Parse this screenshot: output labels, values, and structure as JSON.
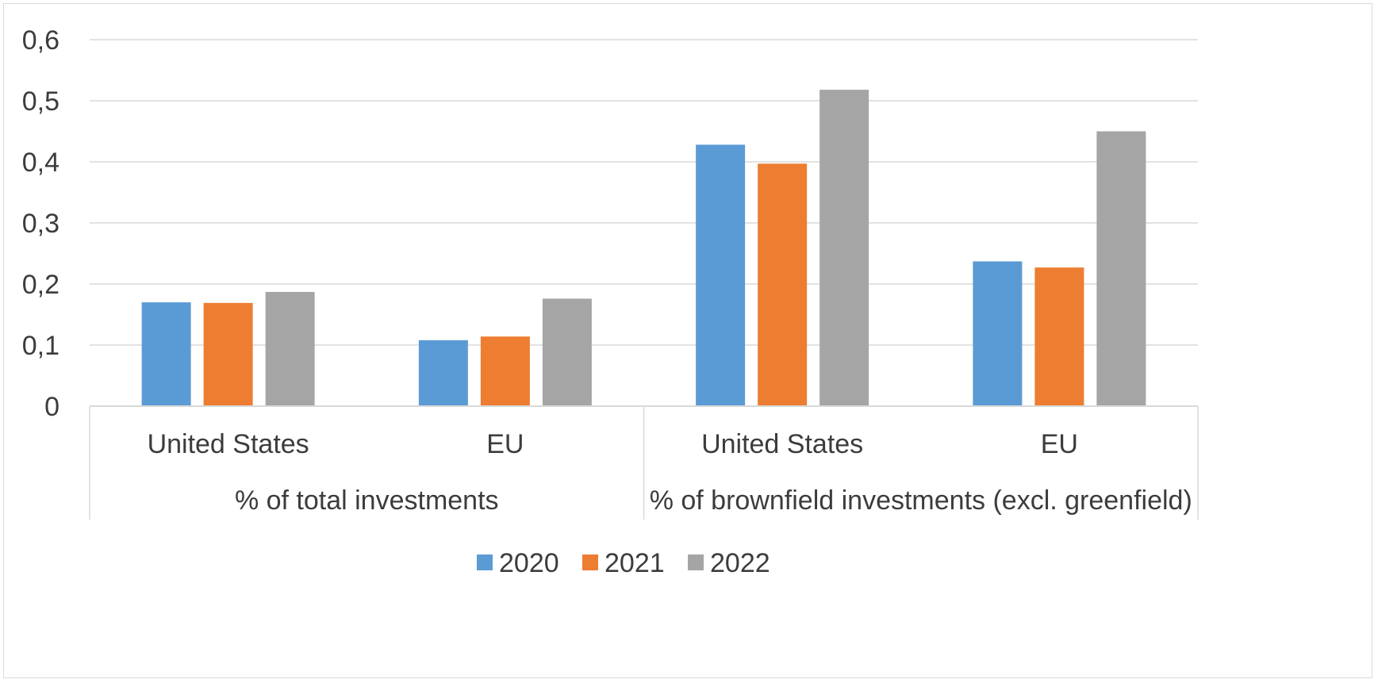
{
  "chart_data": {
    "type": "bar",
    "groups": [
      {
        "label": "% of total investments",
        "categories": [
          "United States",
          "EU"
        ]
      },
      {
        "label": "% of brownfield investments (excl. greenfield)",
        "categories": [
          "United States",
          "EU"
        ]
      }
    ],
    "categories": [
      "United States",
      "EU",
      "United States",
      "EU"
    ],
    "series": [
      {
        "name": "2020",
        "color": "#5b9bd5",
        "values": [
          0.17,
          0.108,
          0.428,
          0.237
        ]
      },
      {
        "name": "2021",
        "color": "#ed7d31",
        "values": [
          0.169,
          0.114,
          0.397,
          0.227
        ]
      },
      {
        "name": "2022",
        "color": "#a5a5a5",
        "values": [
          0.187,
          0.176,
          0.518,
          0.45
        ]
      }
    ],
    "yticks": [
      "0",
      "0,1",
      "0,2",
      "0,3",
      "0,4",
      "0,5",
      "0,6"
    ],
    "ylim": [
      0,
      0.6
    ],
    "grid": true,
    "legend_position": "bottom"
  }
}
